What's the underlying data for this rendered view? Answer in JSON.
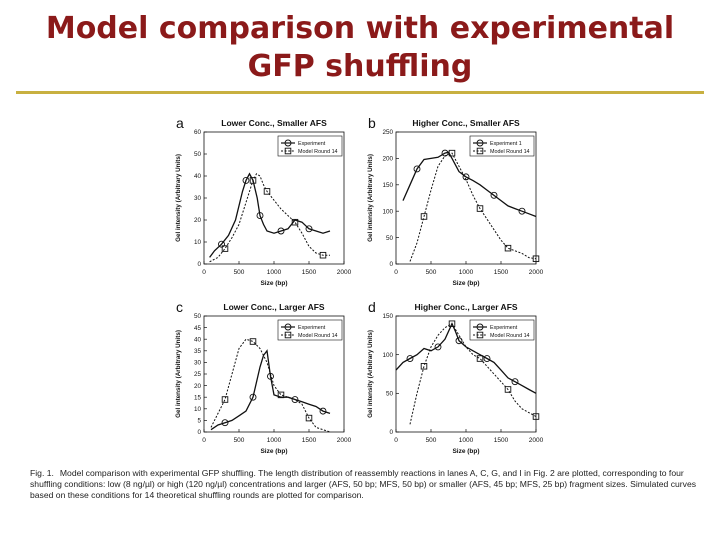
{
  "slide": {
    "title_line1": "Model comparison with experimental",
    "title_line2": "GFP shuffling"
  },
  "caption": {
    "lead": "Fig. 1.",
    "text": "Model comparison with experimental GFP shuffling. The length distribution of reassembly reactions in lanes A, C, G, and I in Fig. 2 are plotted, corresponding to four shuffling conditions: low (8 ng/µl) or high (120 ng/µl) concentrations and larger (AFS, 50 bp; MFS, 50 bp) or smaller (AFS, 45 bp; MFS, 25 bp) fragment sizes. Simulated curves based on these conditions for 14 theoretical shuffling rounds are plotted for comparison."
  },
  "colors": {
    "title": "#8b1a1a",
    "rule": "#c8b040",
    "ink": "#111111"
  },
  "chart_data": [
    {
      "panel_letter": "a",
      "type": "line",
      "title": "Lower Conc., Smaller AFS",
      "xlabel": "Size (bp)",
      "ylabel": "Gel intensity (Arbitrary Units)",
      "xlim": [
        0,
        2000
      ],
      "ylim": [
        0,
        60
      ],
      "xticks": [
        "0",
        "500",
        "1000",
        "1500",
        "2000"
      ],
      "yticks": [
        "0",
        "10",
        "20",
        "30",
        "40",
        "50",
        "60"
      ],
      "legend_position": "top-right",
      "series": [
        {
          "name": "Experiment",
          "style": "solid",
          "marker": "circle",
          "x": [
            80,
            150,
            250,
            350,
            450,
            550,
            600,
            650,
            700,
            760,
            800,
            850,
            900,
            1000,
            1100,
            1200,
            1300,
            1400,
            1500,
            1600,
            1700,
            1800
          ],
          "y": [
            3,
            6,
            9,
            13,
            20,
            33,
            38,
            41,
            38,
            30,
            22,
            18,
            15,
            14,
            15,
            16,
            20,
            19,
            16,
            15,
            14,
            15
          ]
        },
        {
          "name": "Model Round 14",
          "style": "dashed",
          "marker": "square",
          "x": [
            80,
            200,
            300,
            400,
            500,
            600,
            700,
            750,
            800,
            850,
            900,
            1000,
            1100,
            1200,
            1300,
            1400,
            1500,
            1600,
            1700,
            1800
          ],
          "y": [
            1,
            3,
            7,
            12,
            18,
            28,
            38,
            41,
            40,
            36,
            33,
            29,
            25,
            22,
            19,
            14,
            8,
            5,
            4,
            4
          ]
        }
      ]
    },
    {
      "panel_letter": "b",
      "type": "line",
      "title": "Higher Conc., Smaller AFS",
      "xlabel": "Size (bp)",
      "ylabel": "Gel intensity (Arbitrary Units)",
      "xlim": [
        0,
        2000
      ],
      "ylim": [
        0,
        250
      ],
      "xticks": [
        "0",
        "500",
        "1000",
        "1500",
        "2000"
      ],
      "yticks": [
        "0",
        "50",
        "100",
        "150",
        "200",
        "250"
      ],
      "legend_position": "top-right",
      "series": [
        {
          "name": "Experiment 1",
          "style": "solid",
          "marker": "circle",
          "x": [
            100,
            200,
            300,
            400,
            500,
            600,
            700,
            750,
            800,
            900,
            1000,
            1100,
            1200,
            1300,
            1400,
            1500,
            1600,
            1700,
            1800,
            1900,
            2000
          ],
          "y": [
            120,
            150,
            180,
            198,
            200,
            202,
            210,
            212,
            200,
            175,
            165,
            158,
            150,
            140,
            130,
            120,
            110,
            105,
            100,
            95,
            90
          ]
        },
        {
          "name": "Model Round 14",
          "style": "dashed",
          "marker": "square",
          "x": [
            200,
            300,
            400,
            500,
            600,
            700,
            800,
            900,
            1000,
            1100,
            1200,
            1300,
            1400,
            1500,
            1600,
            1700,
            1800,
            1900,
            2000
          ],
          "y": [
            5,
            40,
            90,
            140,
            185,
            205,
            210,
            185,
            160,
            130,
            105,
            85,
            65,
            45,
            30,
            25,
            20,
            12,
            10
          ]
        }
      ]
    },
    {
      "panel_letter": "c",
      "type": "line",
      "title": "Lower Conc., Larger AFS",
      "xlabel": "Size (bp)",
      "ylabel": "Gel intensity (Arbitrary Units)",
      "xlim": [
        0,
        2000
      ],
      "ylim": [
        0,
        50
      ],
      "xticks": [
        "0",
        "500",
        "1000",
        "1500",
        "2000"
      ],
      "yticks": [
        "0",
        "5",
        "10",
        "15",
        "20",
        "25",
        "30",
        "35",
        "40",
        "45",
        "50"
      ],
      "legend_position": "top-right",
      "series": [
        {
          "name": "Experiment",
          "style": "solid",
          "marker": "circle",
          "x": [
            100,
            200,
            300,
            400,
            500,
            600,
            700,
            800,
            850,
            900,
            950,
            1000,
            1100,
            1200,
            1300,
            1400,
            1500,
            1600,
            1700,
            1800
          ],
          "y": [
            1,
            3,
            4,
            5,
            7,
            9,
            15,
            28,
            33,
            35,
            24,
            16,
            15,
            15,
            14,
            13,
            12,
            11,
            9,
            8
          ]
        },
        {
          "name": "Model Round 14",
          "style": "dashed",
          "marker": "square",
          "x": [
            100,
            200,
            300,
            400,
            500,
            600,
            700,
            800,
            900,
            1000,
            1100,
            1200,
            1300,
            1400,
            1500,
            1600,
            1700,
            1800
          ],
          "y": [
            2,
            8,
            14,
            25,
            36,
            40,
            39,
            36,
            30,
            20,
            16,
            15,
            14,
            12,
            6,
            2,
            1,
            0
          ]
        }
      ]
    },
    {
      "panel_letter": "d",
      "type": "line",
      "title": "Higher Conc., Larger AFS",
      "xlabel": "Size (bp)",
      "ylabel": "Gel intensity (Arbitrary Units)",
      "xlim": [
        0,
        2000
      ],
      "ylim": [
        0,
        150
      ],
      "xticks": [
        "0",
        "500",
        "1000",
        "1500",
        "2000"
      ],
      "yticks": [
        "0",
        "50",
        "100",
        "150"
      ],
      "legend_position": "top-right",
      "series": [
        {
          "name": "Experiment",
          "style": "solid",
          "marker": "circle",
          "x": [
            0,
            100,
            200,
            300,
            400,
            500,
            600,
            700,
            800,
            850,
            900,
            1000,
            1100,
            1200,
            1300,
            1400,
            1500,
            1600,
            1700,
            1800,
            1900,
            2000
          ],
          "y": [
            80,
            90,
            95,
            100,
            108,
            105,
            110,
            120,
            140,
            130,
            118,
            110,
            105,
            100,
            95,
            90,
            80,
            70,
            65,
            60,
            55,
            50
          ]
        },
        {
          "name": "Model Round 14",
          "style": "dashed",
          "marker": "square",
          "x": [
            200,
            300,
            400,
            500,
            600,
            700,
            800,
            900,
            1000,
            1100,
            1200,
            1300,
            1400,
            1500,
            1600,
            1700,
            1800,
            1900,
            2000
          ],
          "y": [
            10,
            50,
            85,
            110,
            125,
            135,
            140,
            125,
            110,
            100,
            95,
            85,
            75,
            65,
            55,
            40,
            30,
            25,
            20
          ]
        }
      ]
    }
  ]
}
